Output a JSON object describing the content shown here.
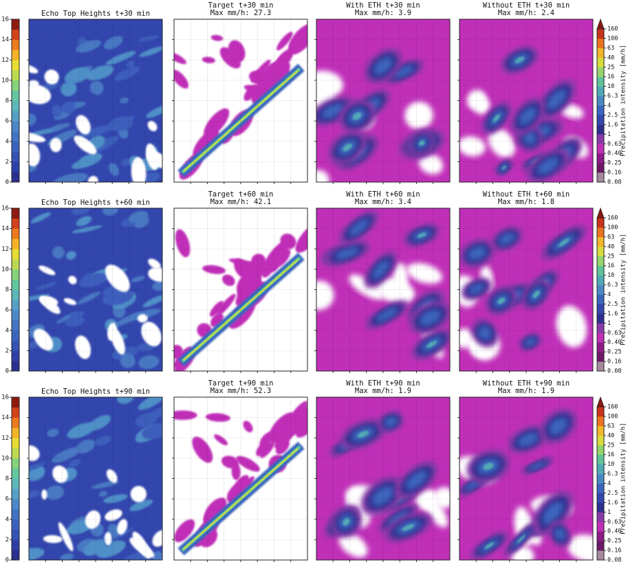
{
  "rows": [
    {
      "eth_title": "Echo Top Heights t+30 min",
      "target_title": [
        "Target t+30 min",
        "Max mm/h: 27.3"
      ],
      "with_title": [
        "With ETH t+30 min",
        "Max mm/h: 3.9"
      ],
      "without_title": [
        "Without ETH t+30 min",
        "Max mm/h: 2.4"
      ]
    },
    {
      "eth_title": "Echo Top Heights t+60 min",
      "target_title": [
        "Target t+60 min",
        "Max mm/h: 42.1"
      ],
      "with_title": [
        "With ETH t+60 min",
        "Max mm/h: 3.4"
      ],
      "without_title": [
        "Without ETH t+60 min",
        "Max mm/h: 1.8"
      ]
    },
    {
      "eth_title": "Echo Top Heights t+90 min",
      "target_title": [
        "Target t+90 min",
        "Max mm/h: 52.3"
      ],
      "with_title": [
        "With ETH t+90 min",
        "Max mm/h: 1.9"
      ],
      "without_title": [
        "Without ETH t+90 min",
        "Max mm/h: 1.9"
      ]
    }
  ],
  "eth_colorbar": {
    "lim": [
      0,
      16
    ],
    "ticks": [
      0,
      2,
      4,
      6,
      8,
      10,
      12,
      14,
      16
    ],
    "colors": [
      "#2b2f8f",
      "#2f3fa8",
      "#3552b5",
      "#3a63bd",
      "#4274c2",
      "#4c88c8",
      "#56a0c6",
      "#5cb7b8",
      "#62c79f",
      "#86d27b",
      "#bcd94f",
      "#e7dd32",
      "#f4b326",
      "#ec7a1f",
      "#d2421b",
      "#8e1a12"
    ]
  },
  "precip_colorbar": {
    "label": "Precipitation intensity [mm/h]",
    "ticks": [
      0.08,
      0.16,
      0.25,
      {
        "value": 0.4,
        "label": "0.40"
      },
      0.63,
      1,
      1.6,
      2.5,
      4,
      6.3,
      10,
      16,
      25,
      40,
      63,
      100,
      160
    ],
    "colors": [
      "#a58a9d",
      "#6d1a66",
      "#8e1b86",
      "#c02fb8",
      "#8a3aa8",
      "#2e2f8f",
      "#3347ad",
      "#3c66bd",
      "#4a8ac3",
      "#52a9b6",
      "#5fc49a",
      "#93d46c",
      "#d7dc3c",
      "#f2b72a",
      "#e9741f",
      "#c6331a"
    ],
    "extend_color": "#8a1810"
  }
}
